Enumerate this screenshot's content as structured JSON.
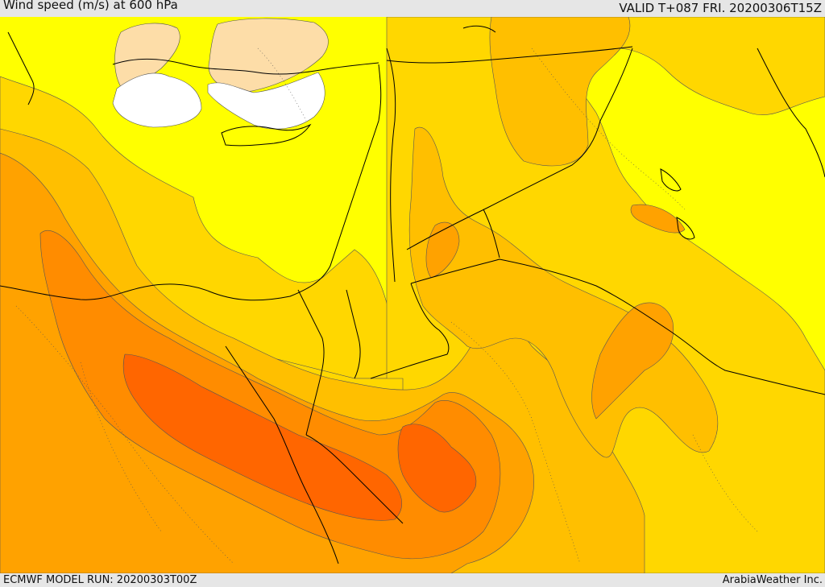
{
  "header": {
    "title": "Wind speed (m/s) at 600 hPa",
    "valid": "VALID T+087 FRI. 20200306T15Z"
  },
  "footer": {
    "model_run": "ECMWF MODEL RUN: 20200303T00Z",
    "credit": "ArabiaWeather Inc."
  },
  "colors": {
    "calm": "#ffffff",
    "very_light": "#fddda8",
    "light": "#ffff00",
    "moderate": "#ffd700",
    "fresh": "#ffbf00",
    "strong": "#ffa200",
    "very_strong": "#ff8c00",
    "extreme": "#ff6600",
    "coastline": "#000000"
  }
}
